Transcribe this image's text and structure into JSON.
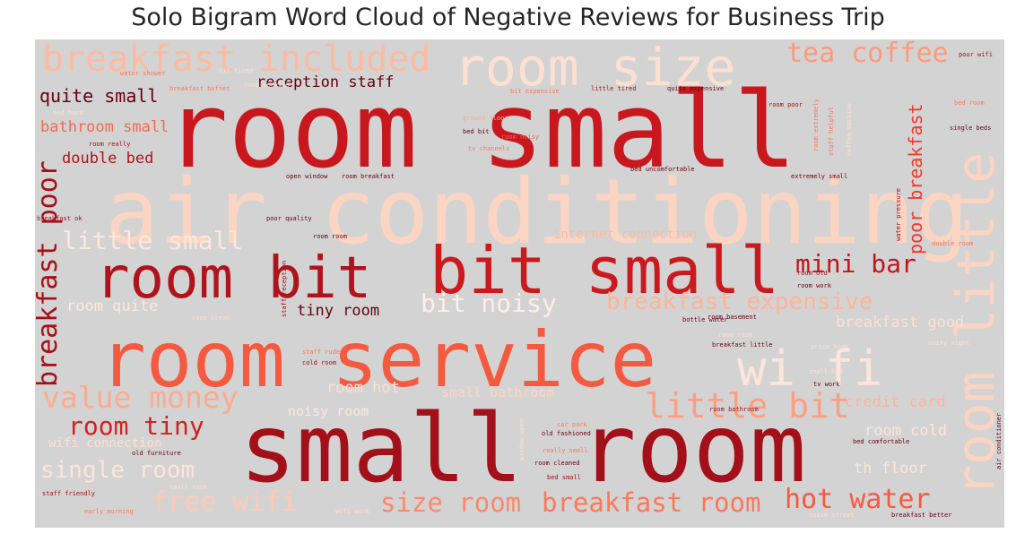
{
  "title": "Solo Bigram Word Cloud of Negative Reviews for Business Trip",
  "background_color": "#d3d3d3",
  "colormap": "Reds",
  "words": [
    {
      "text": "room small",
      "color": "#c8181e"
    },
    {
      "text": "air conditioning",
      "color": "#fcd5c2"
    },
    {
      "text": "small room",
      "color": "#a3101a"
    },
    {
      "text": "room service",
      "color": "#f45a3f"
    },
    {
      "text": "bit small",
      "color": "#ca1a1e"
    },
    {
      "text": "room bit",
      "color": "#b0131c"
    },
    {
      "text": "room size",
      "color": "#fde0d2"
    },
    {
      "text": "room little",
      "color": "#fdd4c2"
    },
    {
      "text": "wi fi",
      "color": "#fde5d9"
    },
    {
      "text": "breakfast included",
      "color": "#fcbba1"
    },
    {
      "text": "little bit",
      "color": "#fb9f80"
    },
    {
      "text": "tea coffee",
      "color": "#fc9b7c"
    },
    {
      "text": "value money",
      "color": "#fcab8f"
    },
    {
      "text": "room tiny",
      "color": "#d4201f"
    },
    {
      "text": "single room",
      "color": "#fee5d8"
    },
    {
      "text": "free wifi",
      "color": "#fdcab5"
    },
    {
      "text": "size room",
      "color": "#fa8969"
    },
    {
      "text": "breakfast room",
      "color": "#fb7858"
    },
    {
      "text": "hot water",
      "color": "#f7593f"
    },
    {
      "text": "little small",
      "color": "#fee7dc"
    },
    {
      "text": "mini bar",
      "color": "#c0151c"
    },
    {
      "text": "bit noisy",
      "color": "#ffeee6"
    },
    {
      "text": "breakfast expensive",
      "color": "#fcb499"
    },
    {
      "text": "breakfast poor",
      "color": "#a50f15"
    },
    {
      "text": "poor breakfast",
      "color": "#ee3a2c"
    },
    {
      "text": "quite small",
      "color": "#67000d"
    },
    {
      "text": "bathroom small",
      "color": "#f26a4d"
    },
    {
      "text": "double bed",
      "color": "#b11218"
    },
    {
      "text": "reception staff",
      "color": "#67000d"
    },
    {
      "text": "tiny room",
      "color": "#67000d"
    },
    {
      "text": "room quite",
      "color": "#fee7dc"
    },
    {
      "text": "room hot",
      "color": "#fde0d2"
    },
    {
      "text": "small bathroom",
      "color": "#fdd4c2"
    },
    {
      "text": "noisy room",
      "color": "#fde8dd"
    },
    {
      "text": "breakfast good",
      "color": "#fde0d2"
    },
    {
      "text": "credit card",
      "color": "#fcb499"
    },
    {
      "text": "room cold",
      "color": "#fee5d8"
    },
    {
      "text": "th floor",
      "color": "#fee5d8"
    },
    {
      "text": "wifi connection",
      "color": "#fde0d2"
    },
    {
      "text": "internet connection",
      "color": "#fcbba1"
    },
    {
      "text": "bed bit",
      "color": "#67000d"
    },
    {
      "text": "room noisy",
      "color": "#f4614a"
    },
    {
      "text": "ground floor",
      "color": "#fcab8f"
    },
    {
      "text": "tv channels",
      "color": "#fb7858"
    },
    {
      "text": "open window",
      "color": "#67000d"
    },
    {
      "text": "room breakfast",
      "color": "#67000d"
    },
    {
      "text": "bed uncomfortable",
      "color": "#67000d"
    },
    {
      "text": "extremely small",
      "color": "#67000d"
    },
    {
      "text": "breakfast ok",
      "color": "#a50f15"
    },
    {
      "text": "poor quality",
      "color": "#67000d"
    },
    {
      "text": "room room",
      "color": "#67000d"
    },
    {
      "text": "water pressure",
      "color": "#a50f15"
    },
    {
      "text": "double room",
      "color": "#fb7858"
    },
    {
      "text": "room old",
      "color": "#a50f15"
    },
    {
      "text": "room work",
      "color": "#67000d"
    },
    {
      "text": "room basement",
      "color": "#67000d"
    },
    {
      "text": "room clean",
      "color": "#fde0d2"
    },
    {
      "text": "bottle water",
      "color": "#67000d"
    },
    {
      "text": "staff rude",
      "color": "#fb7858"
    },
    {
      "text": "cold room",
      "color": "#a50f15"
    },
    {
      "text": "room room",
      "color": "#fde0d2"
    },
    {
      "text": "breakfast little",
      "color": "#67000d"
    },
    {
      "text": "price high",
      "color": "#fde0d2"
    },
    {
      "text": "small bed",
      "color": "#fde0d2"
    },
    {
      "text": "tv work",
      "color": "#67000d"
    },
    {
      "text": "noisy night",
      "color": "#fde0d2"
    },
    {
      "text": "room bathroom",
      "color": "#a50f15"
    },
    {
      "text": "car park",
      "color": "#fb7858"
    },
    {
      "text": "old fashioned",
      "color": "#67000d"
    },
    {
      "text": "room cleaned",
      "color": "#67000d"
    },
    {
      "text": "bed small",
      "color": "#a50f15"
    },
    {
      "text": "really small",
      "color": "#fb7858"
    },
    {
      "text": "bed comfortable",
      "color": "#67000d"
    },
    {
      "text": "old furniture",
      "color": "#67000d"
    },
    {
      "text": "staff friendly",
      "color": "#a50f15"
    },
    {
      "text": "small room",
      "color": "#fde0d2"
    },
    {
      "text": "early morning",
      "color": "#fb7858"
    },
    {
      "text": "noise street",
      "color": "#fde0d2"
    },
    {
      "text": "breakfast better",
      "color": "#67000d"
    },
    {
      "text": "little tired",
      "color": "#a50f15"
    },
    {
      "text": "quite expensive",
      "color": "#67000d"
    },
    {
      "text": "bit expensive",
      "color": "#fb7858"
    },
    {
      "text": "bit tired",
      "color": "#fde0d2"
    },
    {
      "text": "breakfast buffet",
      "color": "#fb7858"
    },
    {
      "text": "single beds",
      "color": "#67000d"
    },
    {
      "text": "room really",
      "color": "#a50f15"
    },
    {
      "text": "pour wifi",
      "color": "#a50f15"
    },
    {
      "text": "staff helpful",
      "color": "#fb7858"
    },
    {
      "text": "staff reception",
      "color": "#a50f15"
    },
    {
      "text": "air conditioner",
      "color": "#67000d"
    },
    {
      "text": "coffee machine",
      "color": "#fde0d2"
    },
    {
      "text": "window open",
      "color": "#fde0d2"
    },
    {
      "text": "room poor",
      "color": "#a50f15"
    },
    {
      "text": "room extremely",
      "color": "#fb7858"
    },
    {
      "text": "wifi work",
      "color": "#fde0d2"
    },
    {
      "text": "bed room",
      "color": "#fb7858"
    },
    {
      "text": "bed hard",
      "color": "#fde0d2"
    },
    {
      "text": "room service",
      "color": "#fde0d2"
    },
    {
      "text": "water shower",
      "color": "#fb7858"
    }
  ]
}
